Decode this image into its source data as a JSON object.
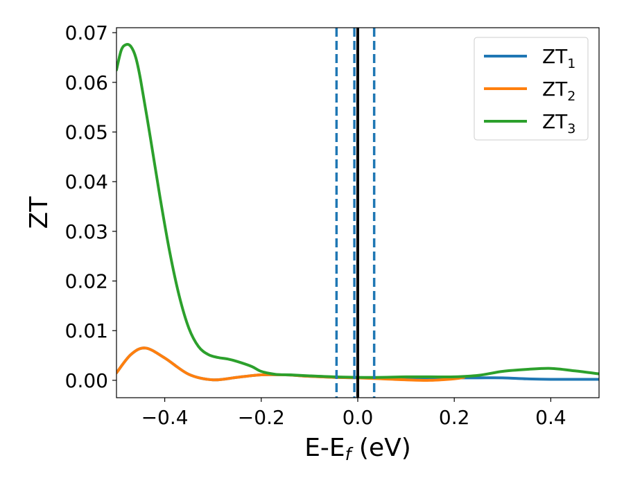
{
  "chart_data": {
    "type": "line",
    "xlabel": "E-E",
    "xlabel_sub": "f",
    "xlabel_unit": " (eV)",
    "ylabel": "ZT",
    "xlim": [
      -0.5,
      0.5
    ],
    "ylim": [
      -0.0035,
      0.071
    ],
    "xticks": [
      -0.4,
      -0.2,
      0.0,
      0.2,
      0.4
    ],
    "xtick_labels": [
      "−0.4",
      "−0.2",
      "0.0",
      "0.2",
      "0.4"
    ],
    "yticks": [
      0.0,
      0.01,
      0.02,
      0.03,
      0.04,
      0.05,
      0.06,
      0.07
    ],
    "ytick_labels": [
      "0.00",
      "0.01",
      "0.02",
      "0.03",
      "0.04",
      "0.05",
      "0.06",
      "0.07"
    ],
    "grid": false,
    "legend_position": "top-right",
    "series": [
      {
        "name": "ZT",
        "name_sub": "1",
        "color": "#1f77b4",
        "x": [
          -0.5,
          -0.47,
          -0.44,
          -0.4,
          -0.35,
          -0.3,
          -0.25,
          -0.2,
          -0.15,
          -0.1,
          -0.05,
          0.0,
          0.05,
          0.1,
          0.15,
          0.2,
          0.25,
          0.3,
          0.35,
          0.4,
          0.45,
          0.5
        ],
        "y": [
          0.0015,
          0.0052,
          0.0065,
          0.0045,
          0.0012,
          0.0001,
          0.0006,
          0.0011,
          0.0011,
          0.0008,
          0.0006,
          0.0005,
          0.0005,
          0.0005,
          0.0005,
          0.0005,
          0.0005,
          0.0005,
          0.0003,
          0.0002,
          0.0002,
          0.0002
        ]
      },
      {
        "name": "ZT",
        "name_sub": "2",
        "color": "#ff7f0e",
        "x": [
          -0.5,
          -0.47,
          -0.44,
          -0.4,
          -0.35,
          -0.3,
          -0.25,
          -0.2,
          -0.15,
          -0.1,
          -0.05,
          0.0,
          0.05,
          0.1,
          0.15,
          0.2,
          0.22
        ],
        "y": [
          0.0015,
          0.0052,
          0.0065,
          0.0045,
          0.0012,
          0.0001,
          0.0006,
          0.0011,
          0.0011,
          0.0008,
          0.0006,
          0.0005,
          0.0003,
          0.0001,
          0.0,
          0.0003,
          0.0006
        ]
      },
      {
        "name": "ZT",
        "name_sub": "3",
        "color": "#2ca02c",
        "x": [
          -0.5,
          -0.49,
          -0.48,
          -0.47,
          -0.46,
          -0.45,
          -0.43,
          -0.41,
          -0.39,
          -0.37,
          -0.35,
          -0.33,
          -0.31,
          -0.29,
          -0.27,
          -0.25,
          -0.22,
          -0.2,
          -0.17,
          -0.14,
          -0.1,
          -0.05,
          0.0,
          0.05,
          0.1,
          0.15,
          0.2,
          0.25,
          0.3,
          0.35,
          0.4,
          0.45,
          0.5
        ],
        "y": [
          0.0625,
          0.0665,
          0.0676,
          0.0672,
          0.065,
          0.0605,
          0.049,
          0.037,
          0.026,
          0.017,
          0.0105,
          0.0068,
          0.0052,
          0.0046,
          0.0043,
          0.0038,
          0.0028,
          0.0018,
          0.0012,
          0.0011,
          0.0009,
          0.0007,
          0.0006,
          0.0006,
          0.0007,
          0.0007,
          0.0007,
          0.001,
          0.0018,
          0.0022,
          0.0024,
          0.0019,
          0.0013
        ]
      }
    ],
    "vlines": [
      {
        "x": -0.044,
        "style": "dashed",
        "color": "#1f77b4"
      },
      {
        "x": -0.007,
        "style": "dashed",
        "color": "#1f77b4"
      },
      {
        "x": 0.034,
        "style": "dashed",
        "color": "#1f77b4"
      },
      {
        "x": 0.0,
        "style": "solid",
        "color": "#000000"
      }
    ]
  }
}
